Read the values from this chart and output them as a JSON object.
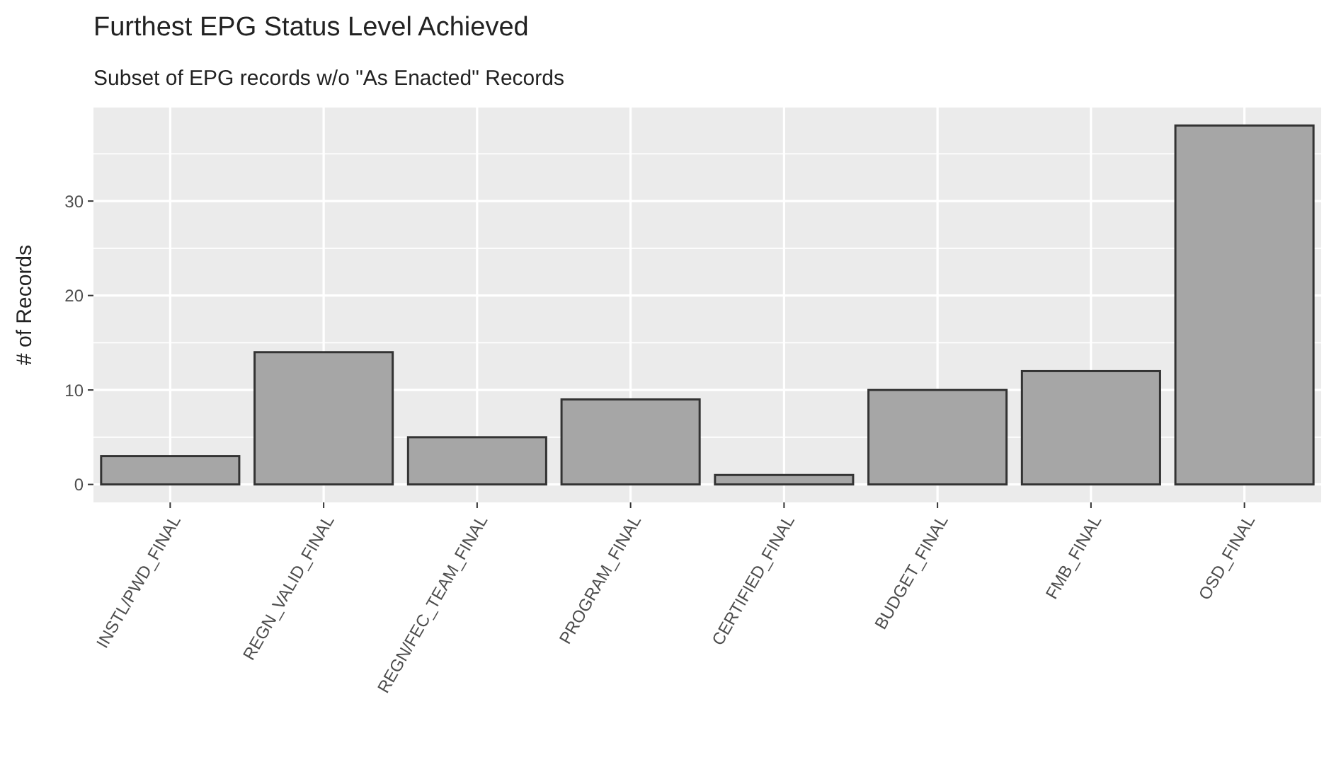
{
  "chart_data": {
    "type": "bar",
    "title": "Furthest EPG Status Level Achieved",
    "subtitle": "Subset of EPG records w/o \"As Enacted\" Records",
    "ylabel": "# of Records",
    "categories": [
      "INSTL/PWD_FINAL",
      "REGN_VALID_FINAL",
      "REGN/FEC_TEAM_FINAL",
      "PROGRAM_FINAL",
      "CERTIFIED_FINAL",
      "BUDGET_FINAL",
      "FMB_FINAL",
      "OSD_FINAL"
    ],
    "values": [
      3,
      14,
      5,
      9,
      1,
      10,
      12,
      38
    ],
    "color": "#a6a6a6",
    "ylim": [
      -1.9,
      39.9
    ],
    "yticks": [
      0,
      10,
      20,
      30
    ],
    "grid": true
  }
}
